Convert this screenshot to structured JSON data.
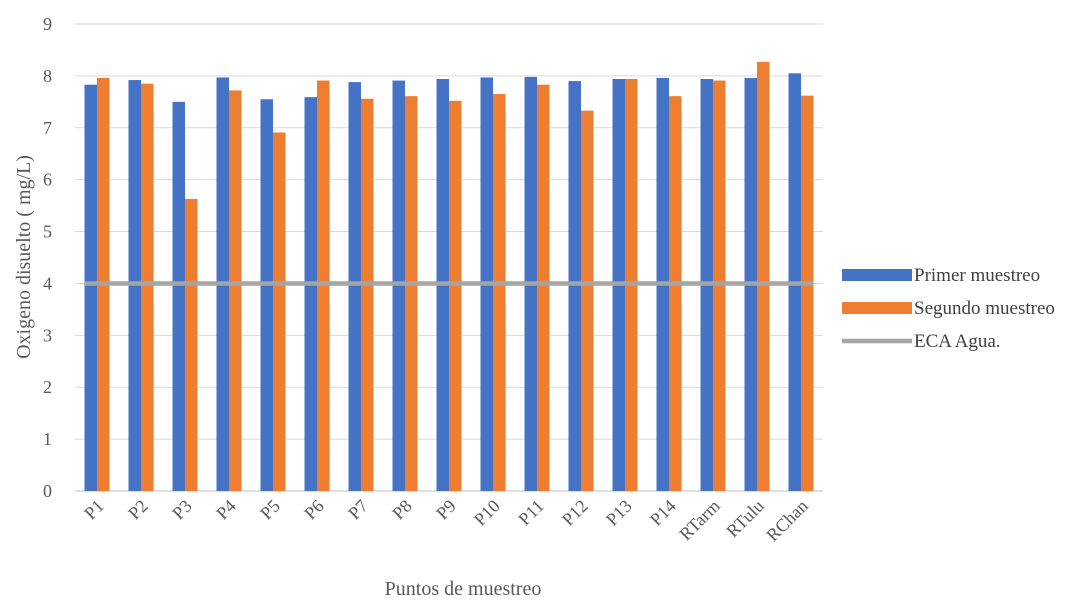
{
  "chart_data": {
    "type": "bar",
    "title": "",
    "xlabel": "Puntos de muestreo",
    "ylabel": "Oxigeno disuelto ( mg/L)",
    "ylim": [
      0,
      9
    ],
    "yticks": [
      0,
      1,
      2,
      3,
      4,
      5,
      6,
      7,
      8,
      9
    ],
    "grid": true,
    "legend_position": "right",
    "categories": [
      "P1",
      "P2",
      "P3",
      "P4",
      "P5",
      "P6",
      "P7",
      "P8",
      "P9",
      "P10",
      "P11",
      "P12",
      "P13",
      "P14",
      "RTarm",
      "RTulu",
      "RChan"
    ],
    "series": [
      {
        "name": "Primer muestreo",
        "type": "bar",
        "color": "#4472C4",
        "values": [
          7.83,
          7.92,
          7.5,
          7.97,
          7.55,
          7.59,
          7.88,
          7.91,
          7.94,
          7.97,
          7.98,
          7.9,
          7.94,
          7.96,
          7.94,
          7.96,
          8.05
        ]
      },
      {
        "name": "Segundo muestreo",
        "type": "bar",
        "color": "#ED7D31",
        "values": [
          7.96,
          7.85,
          5.63,
          7.72,
          6.91,
          7.91,
          7.56,
          7.61,
          7.52,
          7.65,
          7.83,
          7.33,
          7.94,
          7.61,
          7.91,
          8.27,
          7.62
        ]
      },
      {
        "name": "ECA Agua.",
        "type": "line",
        "color": "#A5A5A5",
        "value": 4
      }
    ]
  }
}
